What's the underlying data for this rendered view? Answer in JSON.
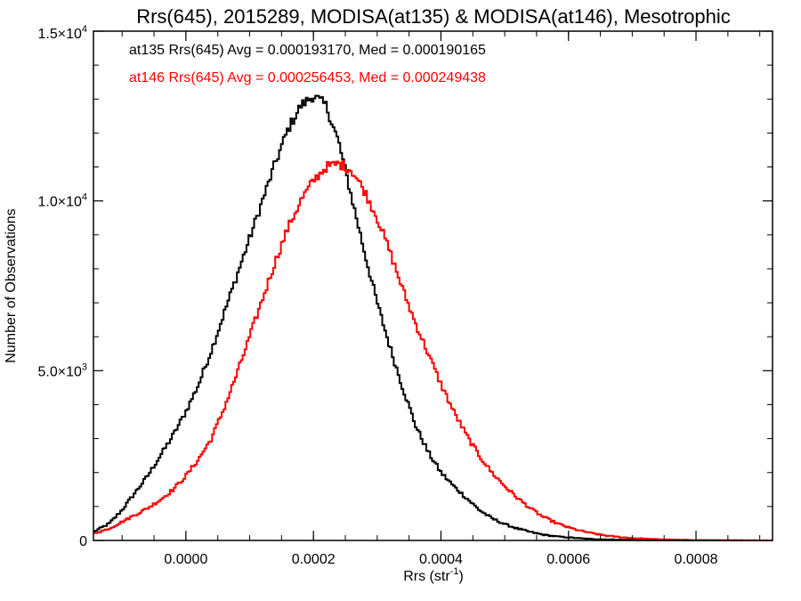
{
  "chart_data": {
    "type": "histogram",
    "title": "Rrs(645), 2015289, MODISA(at135) & MODISA(at146), Mesotrophic",
    "xlabel": "Rrs (str",
    "xlabel_sup": "-1",
    "xlabel_close": ")",
    "ylabel": "Number of Observations",
    "xlim": [
      -0.000145,
      0.00092
    ],
    "ylim": [
      0,
      15000
    ],
    "x_ticks": [
      {
        "value": 0.0,
        "label": "0.0000"
      },
      {
        "value": 0.0002,
        "label": "0.0002"
      },
      {
        "value": 0.0004,
        "label": "0.0004"
      },
      {
        "value": 0.0006,
        "label": "0.0006"
      },
      {
        "value": 0.0008,
        "label": "0.0008"
      }
    ],
    "y_ticks": [
      {
        "value": 0,
        "label": "0",
        "exp": ""
      },
      {
        "value": 5000,
        "label": "5.0×10",
        "exp": "3"
      },
      {
        "value": 10000,
        "label": "1.0×10",
        "exp": "4"
      },
      {
        "value": 15000,
        "label": "1.5×10",
        "exp": "4"
      }
    ],
    "series": [
      {
        "name": "at135",
        "label": "at135 Rrs(645) Avg = 0.000193170, Med = 0.000190165",
        "color": "#000000",
        "x": [
          -0.000145,
          -0.00012,
          -0.0001,
          -8e-05,
          -6e-05,
          -4e-05,
          -2e-05,
          0.0,
          2e-05,
          4e-05,
          6e-05,
          8e-05,
          0.0001,
          0.00012,
          0.00014,
          0.00016,
          0.00018,
          0.0002,
          0.00022,
          0.00024,
          0.00026,
          0.00028,
          0.0003,
          0.00032,
          0.00034,
          0.00036,
          0.00038,
          0.0004,
          0.00042,
          0.00044,
          0.00046,
          0.00048,
          0.0005,
          0.00052,
          0.00054,
          0.00056,
          0.00058,
          0.0006,
          0.00062,
          0.00064,
          0.00066,
          0.00068,
          0.0007,
          0.00072,
          0.00074,
          0.00076,
          0.00078,
          0.0008,
          0.00082,
          0.00084,
          0.00086,
          0.00088,
          0.0009,
          0.00092
        ],
        "y": [
          250,
          500,
          900,
          1400,
          1900,
          2500,
          3100,
          3800,
          4600,
          5600,
          6700,
          7800,
          8900,
          10000,
          11100,
          12100,
          12800,
          13100,
          12800,
          11700,
          10100,
          8500,
          7000,
          5700,
          4500,
          3400,
          2600,
          2000,
          1600,
          1250,
          900,
          650,
          480,
          350,
          250,
          170,
          120,
          90,
          60,
          40,
          30,
          20,
          15,
          10,
          8,
          5,
          4,
          3,
          2,
          2,
          1,
          1,
          0,
          0
        ]
      },
      {
        "name": "at146",
        "label": "at146 Rrs(645) Avg = 0.000256453, Med = 0.000249438",
        "color": "#ff0000",
        "x": [
          -0.000145,
          -0.00012,
          -0.0001,
          -8e-05,
          -6e-05,
          -4e-05,
          -2e-05,
          0.0,
          2e-05,
          4e-05,
          6e-05,
          8e-05,
          0.0001,
          0.00012,
          0.00014,
          0.00016,
          0.00018,
          0.0002,
          0.00022,
          0.00024,
          0.00026,
          0.00028,
          0.0003,
          0.00032,
          0.00034,
          0.00036,
          0.00038,
          0.0004,
          0.00042,
          0.00044,
          0.00046,
          0.00048,
          0.0005,
          0.00052,
          0.00054,
          0.00056,
          0.00058,
          0.0006,
          0.00062,
          0.00064,
          0.00066,
          0.00068,
          0.0007,
          0.00072,
          0.00074,
          0.00076,
          0.00078,
          0.0008,
          0.00082,
          0.00084,
          0.00086,
          0.00088,
          0.0009,
          0.00092
        ],
        "y": [
          200,
          350,
          550,
          750,
          950,
          1200,
          1500,
          1900,
          2400,
          3000,
          3900,
          4900,
          6000,
          7100,
          8200,
          9200,
          10000,
          10600,
          11000,
          11100,
          10900,
          10300,
          9500,
          8500,
          7400,
          6400,
          5500,
          4600,
          3800,
          3100,
          2500,
          2000,
          1600,
          1250,
          950,
          700,
          520,
          380,
          280,
          200,
          140,
          100,
          70,
          50,
          35,
          25,
          18,
          12,
          8,
          5,
          3,
          2,
          1,
          0
        ]
      }
    ],
    "grid": false,
    "legend_placement": "top-left"
  }
}
